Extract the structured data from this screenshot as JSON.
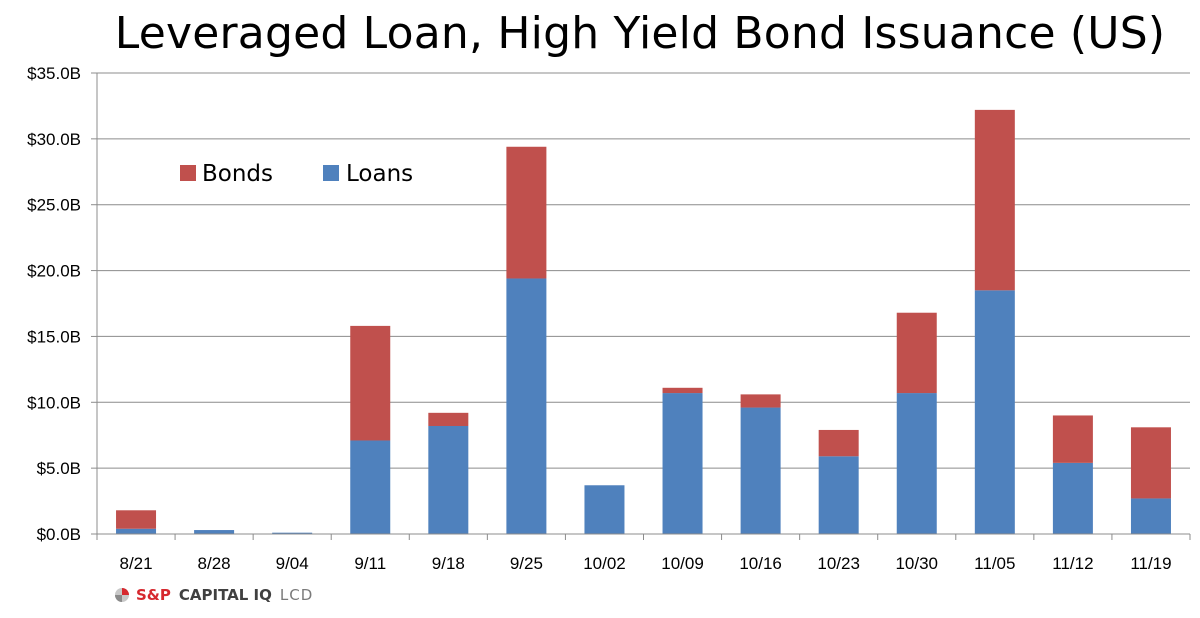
{
  "chart_data": {
    "type": "bar",
    "stacked": true,
    "title": "Leveraged Loan, High Yield Bond Issuance (US)",
    "categories": [
      "8/21",
      "8/28",
      "9/04",
      "9/11",
      "9/18",
      "9/25",
      "10/02",
      "10/09",
      "10/16",
      "10/23",
      "10/30",
      "11/05",
      "11/12",
      "11/19"
    ],
    "series": [
      {
        "name": "Loans",
        "color": "#4f81bd",
        "values": [
          0.4,
          0.3,
          0.1,
          7.1,
          8.2,
          19.4,
          3.7,
          10.7,
          9.6,
          5.9,
          10.7,
          18.5,
          5.4,
          2.7
        ]
      },
      {
        "name": "Bonds",
        "color": "#c0504d",
        "values": [
          1.4,
          0,
          0,
          8.7,
          1.0,
          10.0,
          0,
          0.4,
          1.0,
          2.0,
          6.1,
          13.7,
          3.6,
          5.4
        ]
      }
    ],
    "ylim": [
      0,
      35
    ],
    "yticks": [
      0,
      5,
      10,
      15,
      20,
      25,
      30,
      35
    ],
    "ytick_labels": [
      "$0.0B",
      "$5.0B",
      "$10.0B",
      "$15.0B",
      "$20.0B",
      "$25.0B",
      "$30.0B",
      "$35.0B"
    ],
    "grid": true,
    "legend": [
      "Bonds",
      "Loans"
    ],
    "legend_position": "top-left"
  },
  "footer": {
    "brand_primary": "S&P",
    "brand_secondary": "CAPITAL IQ",
    "brand_tertiary": "LCD",
    "logo_icon": "sp-logo-icon"
  }
}
